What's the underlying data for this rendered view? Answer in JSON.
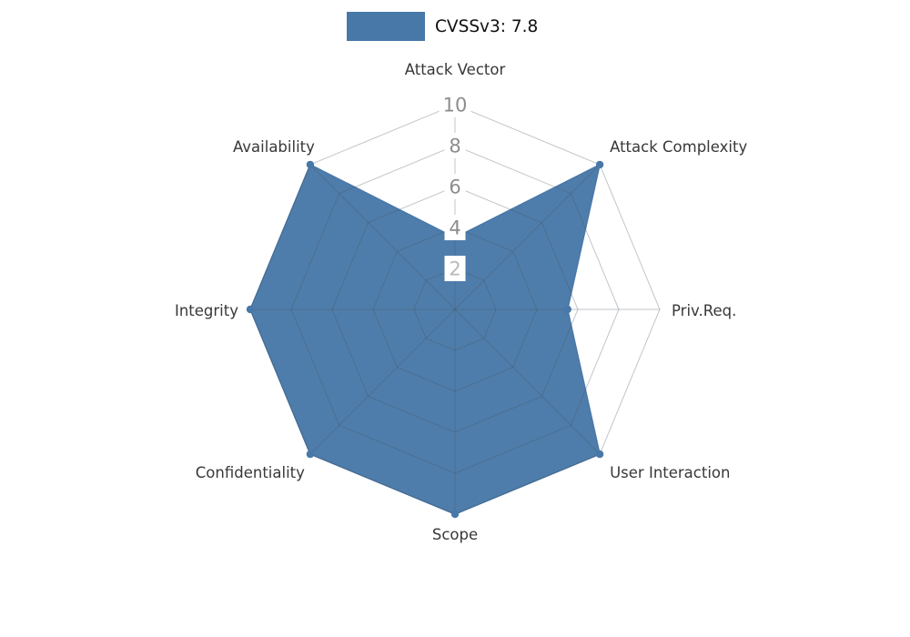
{
  "legend": {
    "label": "CVSSv3: 7.8",
    "swatch_color": "#4878a8"
  },
  "chart_data": {
    "type": "radar",
    "title": "CVSSv3: 7.8",
    "categories": [
      "Attack Vector",
      "Attack Complexity",
      "Priv.Req.",
      "User Interaction",
      "Scope",
      "Confidentiality",
      "Integrity",
      "Availability"
    ],
    "series": [
      {
        "name": "CVSSv3: 7.8",
        "values": [
          3.5,
          10,
          5.5,
          10,
          10,
          10,
          10,
          10
        ]
      }
    ],
    "range": [
      0,
      10
    ],
    "ticks": [
      2,
      4,
      6,
      8,
      10
    ],
    "tick_labels": [
      "2",
      "4",
      "6",
      "8",
      "10"
    ],
    "grid": true,
    "legend_position": "top-center",
    "colors": {
      "background": "#ffffff",
      "fill": "#4878a8",
      "grid": "#46525f",
      "grid_opacity": 0.33,
      "tick_labels": [
        "#b9b9b9",
        "#8d8d8d",
        "#8d8d8d",
        "#8d8d8d",
        "#8d8d8d"
      ],
      "axis_label": "#383838"
    }
  }
}
